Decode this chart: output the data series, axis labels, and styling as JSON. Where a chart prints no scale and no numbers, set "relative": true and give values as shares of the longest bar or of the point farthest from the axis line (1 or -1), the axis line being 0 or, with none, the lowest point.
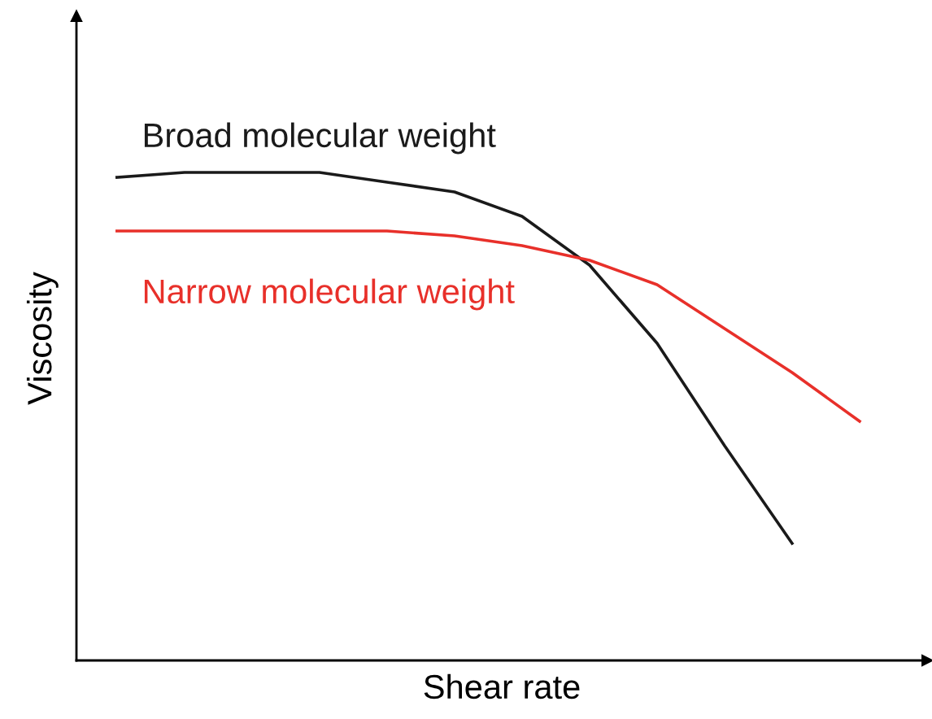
{
  "chart_data": {
    "type": "line",
    "relative": true,
    "xlabel": "Shear rate",
    "ylabel": "Viscosity",
    "categories": [
      null,
      null,
      null,
      null,
      null,
      null,
      null,
      null,
      null,
      null,
      null,
      null
    ],
    "series": [
      {
        "name": "Broad molecular weight",
        "color": "#1a1a1a",
        "values": [
          0.99,
          1.0,
          1.0,
          1.0,
          0.98,
          0.96,
          0.91,
          0.81,
          0.65,
          0.44,
          0.24,
          null
        ]
      },
      {
        "name": "Narrow molecular weight",
        "color": "#e8302a",
        "values": [
          0.88,
          0.88,
          0.88,
          0.88,
          0.88,
          0.87,
          0.85,
          0.82,
          0.77,
          0.68,
          0.59,
          0.49
        ]
      }
    ],
    "marker": "none",
    "line_style": "solid",
    "legend": false
  }
}
